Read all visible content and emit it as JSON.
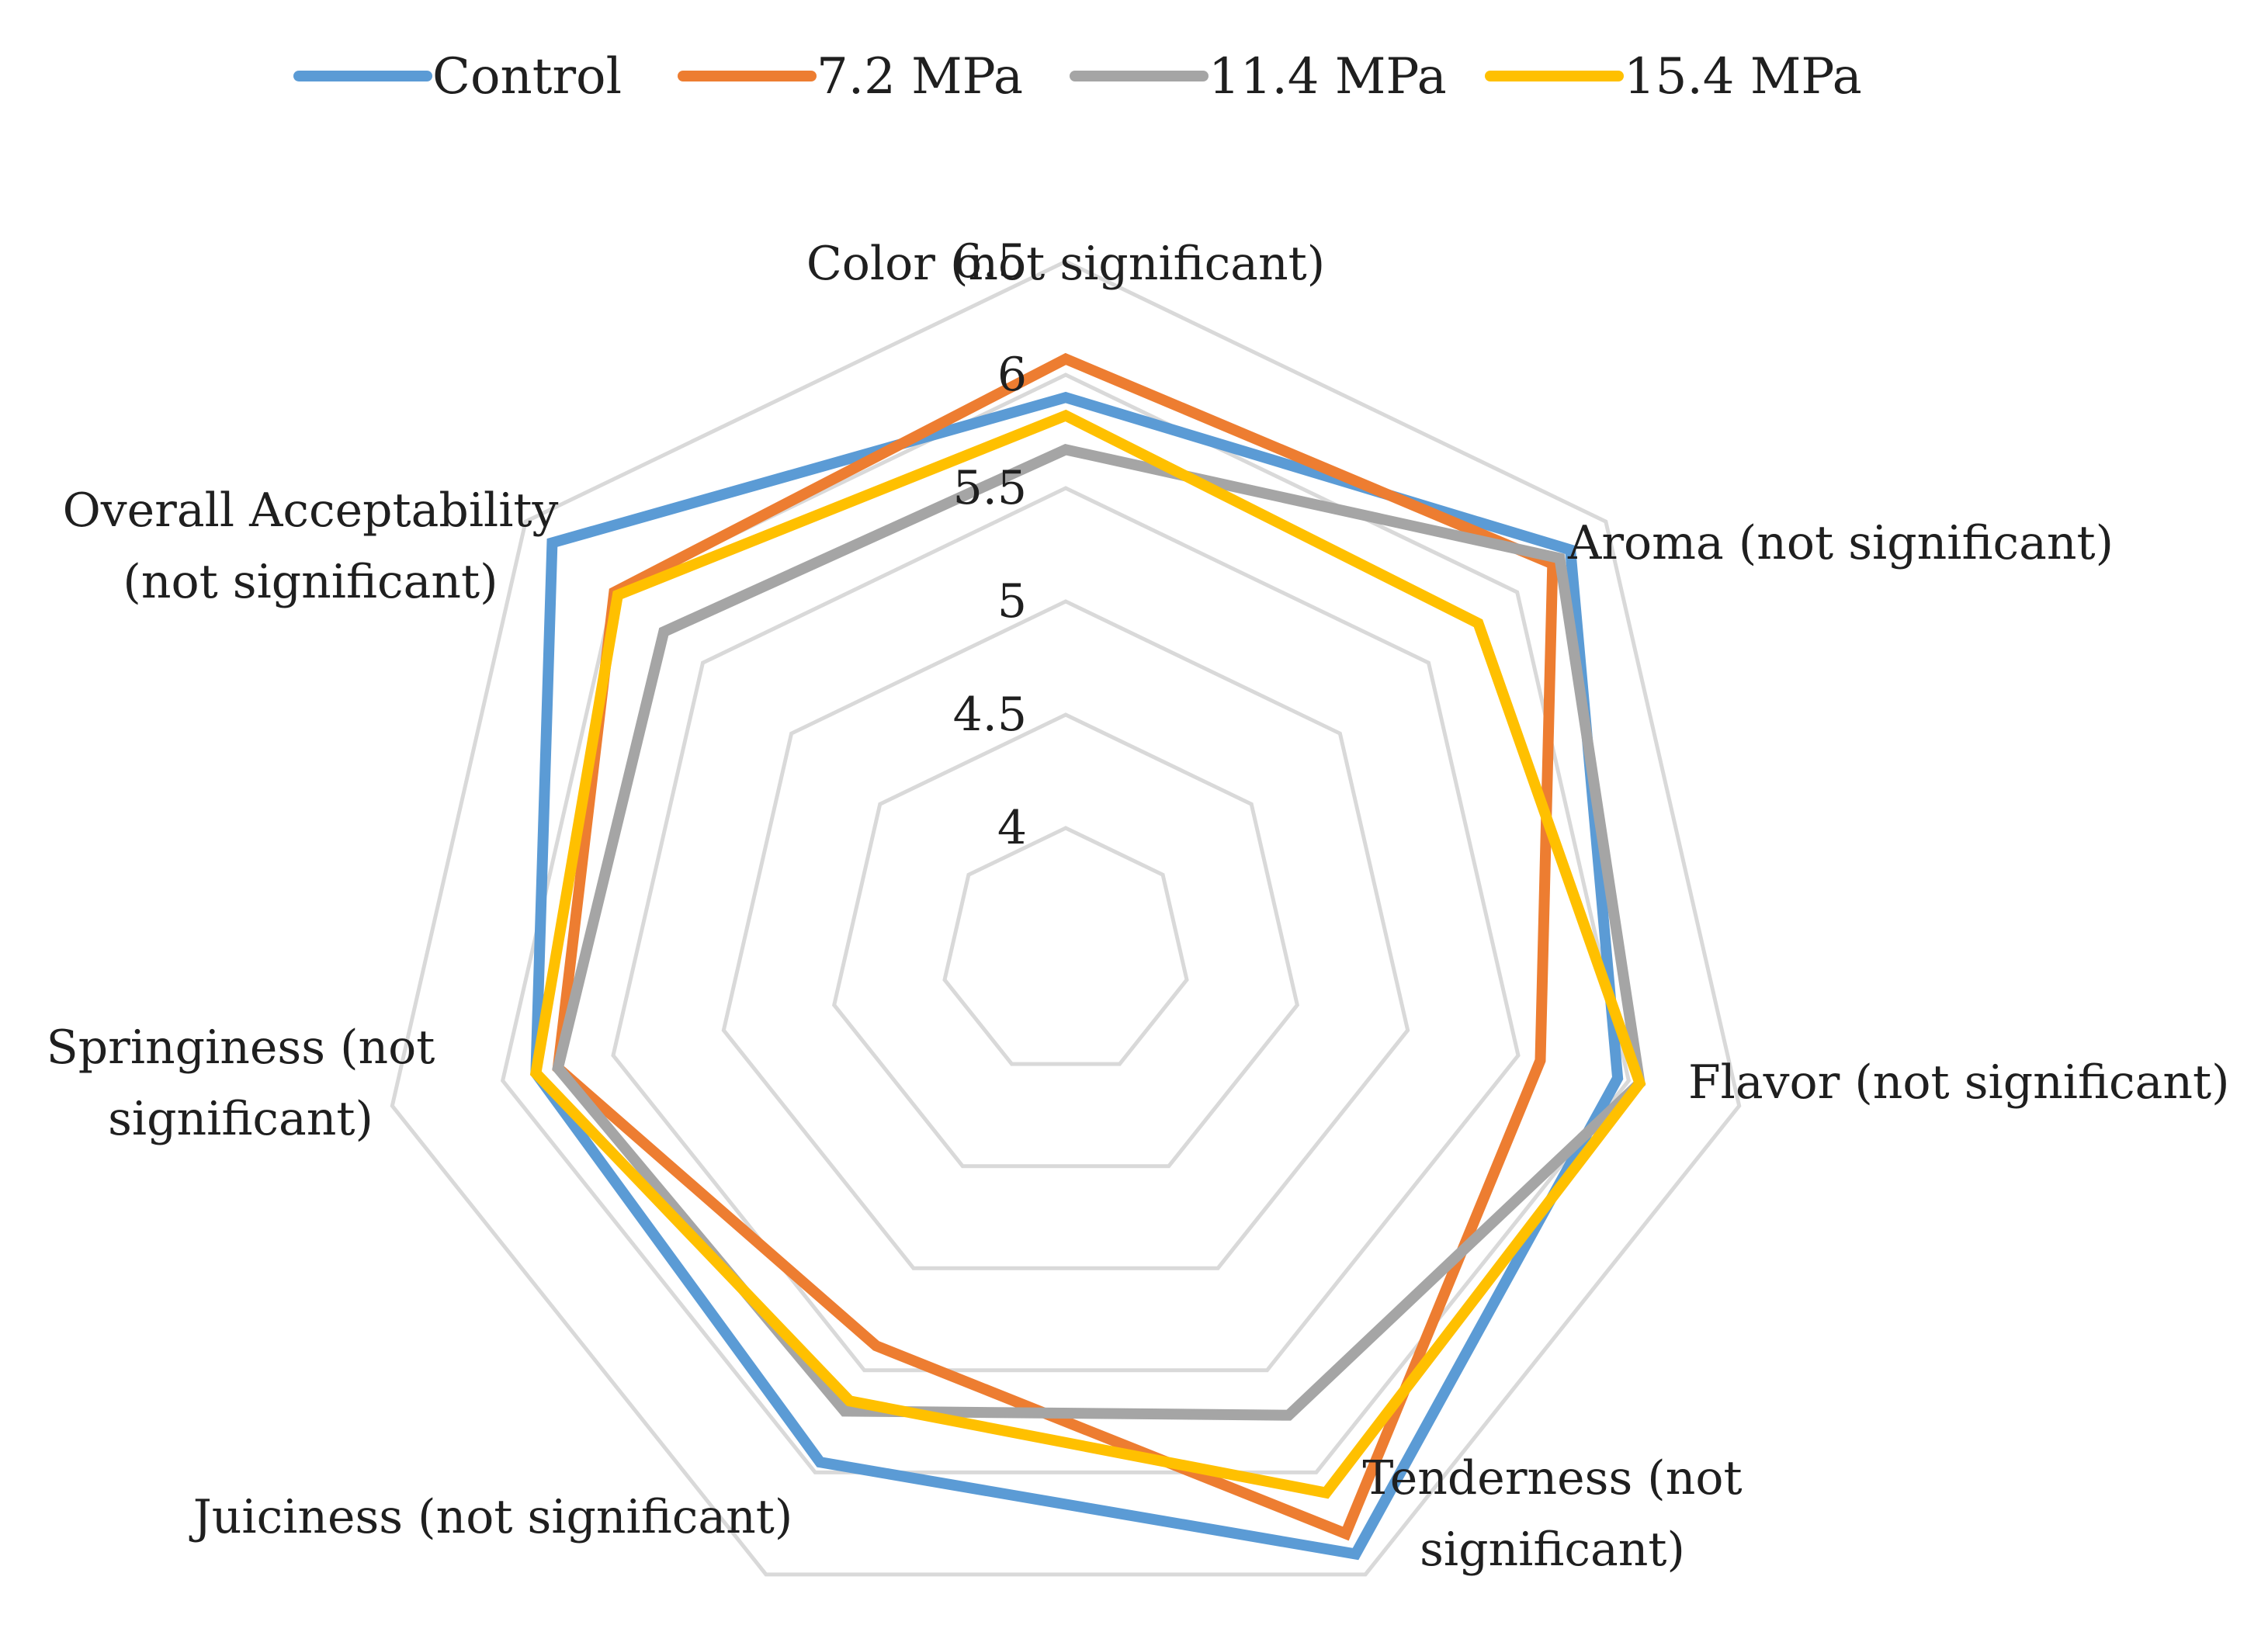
{
  "chart_data": {
    "type": "radar",
    "categories": [
      "Color (not significant)",
      "Aroma (not significant)",
      "Flavor (not significant)",
      "Tenderness (not significant)",
      "Juiciness (not significant)",
      "Springiness (not significant)",
      "Overall Acceptability (not significant)"
    ],
    "category_lines": [
      [
        "Color (not significant)"
      ],
      [
        "Aroma (not significant)"
      ],
      [
        "Flavor (not significant)"
      ],
      [
        "Tenderness (not",
        "significant)"
      ],
      [
        "Juiciness (not significant)"
      ],
      [
        "Springiness (not",
        "significant)"
      ],
      [
        "Overall Acceptability",
        "(not significant)"
      ]
    ],
    "rlim": [
      4,
      6.5
    ],
    "ticks": [
      "4",
      "4.5",
      "5",
      "5.5",
      "6",
      "6.5"
    ],
    "tick_values": [
      4,
      4.5,
      5,
      5.5,
      6,
      6.5
    ],
    "series": [
      {
        "name": "Control",
        "color": "#5b9bd5",
        "values": [
          5.9,
          6.3,
          5.95,
          6.4,
          5.95,
          5.85,
          6.35
        ]
      },
      {
        "name": "7.2 MPa",
        "color": "#ed7d31",
        "values": [
          6.07,
          6.2,
          5.6,
          6.3,
          5.38,
          5.75,
          6.0
        ]
      },
      {
        "name": "11.4 MPa",
        "color": "#a5a5a5",
        "values": [
          5.67,
          6.24,
          6.05,
          5.72,
          5.7,
          5.75,
          5.72
        ]
      },
      {
        "name": "15.4 MPa",
        "color": "#ffc000",
        "values": [
          5.82,
          5.78,
          6.05,
          6.1,
          5.65,
          5.85,
          5.98
        ]
      }
    ]
  }
}
